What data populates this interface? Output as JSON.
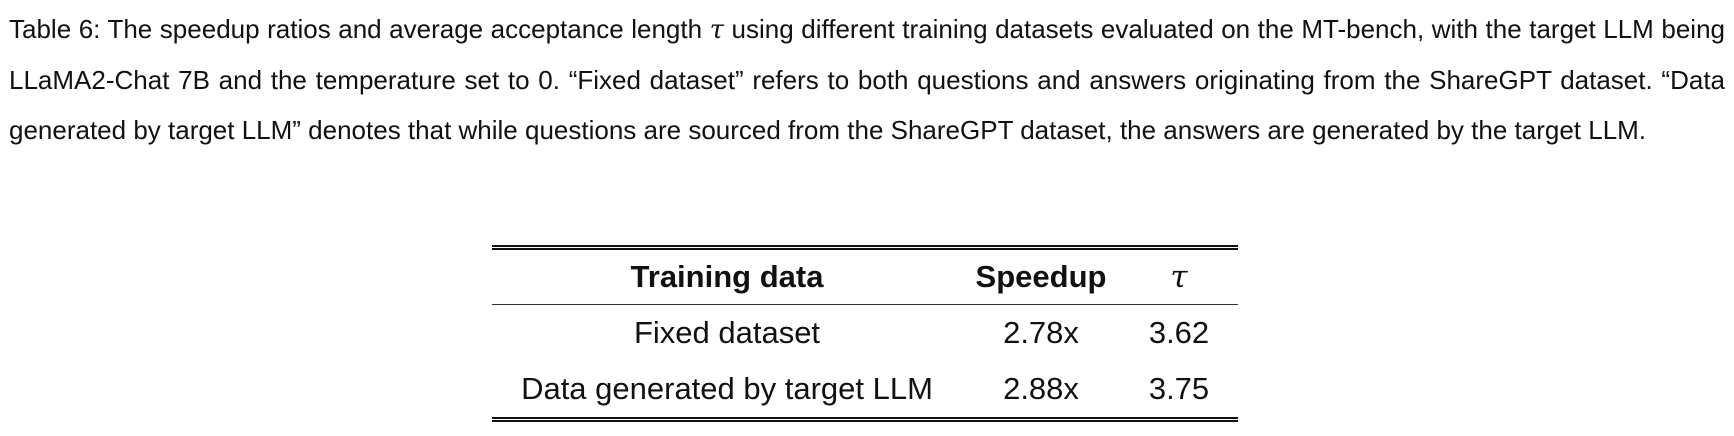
{
  "caption": {
    "lead": "Table 6: The speedup ratios and average acceptance length ",
    "symbol": "τ",
    "rest": " using different training datasets evaluated on the MT-bench, with the target LLM being LLaMA2-Chat 7B and the temperature set to 0. “Fixed dataset” refers to both questions and answers originating from the ShareGPT dataset. “Data generated by target LLM” denotes that while questions are sourced from the ShareGPT dataset, the answers are generated by the target LLM."
  },
  "table": {
    "headers": [
      "Training data",
      "Speedup",
      "τ"
    ],
    "rows": [
      [
        "Fixed dataset",
        "2.78x",
        "3.62"
      ],
      [
        "Data generated by target LLM",
        "2.88x",
        "3.75"
      ]
    ]
  }
}
